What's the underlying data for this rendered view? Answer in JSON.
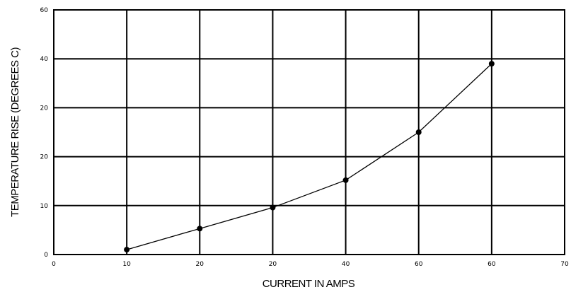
{
  "chart_data": {
    "type": "line",
    "title": "",
    "xlabel": "CURRENT IN AMPS",
    "ylabel": "TEMPERATURE RISE (DEGREES C)",
    "x_tick_labels": [
      "0",
      "10",
      "20",
      "20",
      "40",
      "60",
      "60",
      "70"
    ],
    "y_tick_labels": [
      "0",
      "10",
      "20",
      "20",
      "40",
      "60"
    ],
    "xlim": [
      0,
      70
    ],
    "ylim": [
      0,
      50
    ],
    "grid": true,
    "legend": "none",
    "series": [
      {
        "x": [
          10,
          20,
          30,
          40,
          50,
          60
        ],
        "y": [
          1,
          5.3,
          9.6,
          15.2,
          25,
          39
        ]
      }
    ],
    "line_color": "#000000",
    "marker": "filled-circle"
  }
}
